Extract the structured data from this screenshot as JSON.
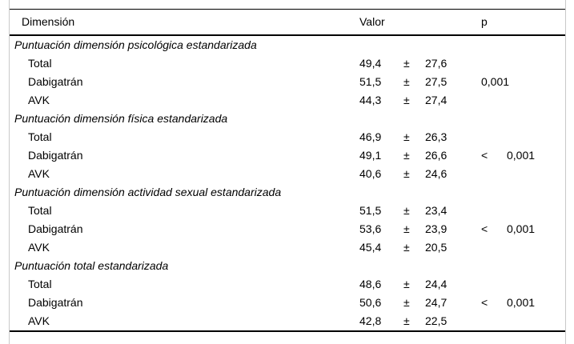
{
  "table": {
    "columns": {
      "dimension": "Dimensión",
      "value": "Valor",
      "p": "p"
    },
    "plus_minus": "±",
    "less_than": "<",
    "sections": [
      {
        "label": "Puntuación dimensión psicológica estandarizada",
        "rows": [
          {
            "label": "Total",
            "value": "49,4",
            "sd": "27,6",
            "p_sign": "",
            "p_value": ""
          },
          {
            "label": "Dabigatrán",
            "value": "51,5",
            "sd": "27,5",
            "p_sign": "",
            "p_value": "0,001"
          },
          {
            "label": "AVK",
            "value": "44,3",
            "sd": "27,4",
            "p_sign": "",
            "p_value": ""
          }
        ]
      },
      {
        "label": "Puntuación dimensión física estandarizada",
        "rows": [
          {
            "label": "Total",
            "value": "46,9",
            "sd": "26,3",
            "p_sign": "",
            "p_value": ""
          },
          {
            "label": "Dabigatrán",
            "value": "49,1",
            "sd": "26,6",
            "p_sign": "<",
            "p_value": "0,001"
          },
          {
            "label": "AVK",
            "value": "40,6",
            "sd": "24,6",
            "p_sign": "",
            "p_value": ""
          }
        ]
      },
      {
        "label": "Puntuación dimensión actividad sexual estandarizada",
        "rows": [
          {
            "label": "Total",
            "value": "51,5",
            "sd": "23,4",
            "p_sign": "",
            "p_value": ""
          },
          {
            "label": "Dabigatrán",
            "value": "53,6",
            "sd": "23,9",
            "p_sign": "<",
            "p_value": "0,001"
          },
          {
            "label": "AVK",
            "value": "45,4",
            "sd": "20,5",
            "p_sign": "",
            "p_value": ""
          }
        ]
      },
      {
        "label": "Puntuación total estandarizada",
        "rows": [
          {
            "label": "Total",
            "value": "48,6",
            "sd": "24,4",
            "p_sign": "",
            "p_value": ""
          },
          {
            "label": "Dabigatrán",
            "value": "50,6",
            "sd": "24,7",
            "p_sign": "<",
            "p_value": "0,001"
          },
          {
            "label": "AVK",
            "value": "42,8",
            "sd": "22,5",
            "p_sign": "",
            "p_value": ""
          }
        ]
      }
    ]
  }
}
